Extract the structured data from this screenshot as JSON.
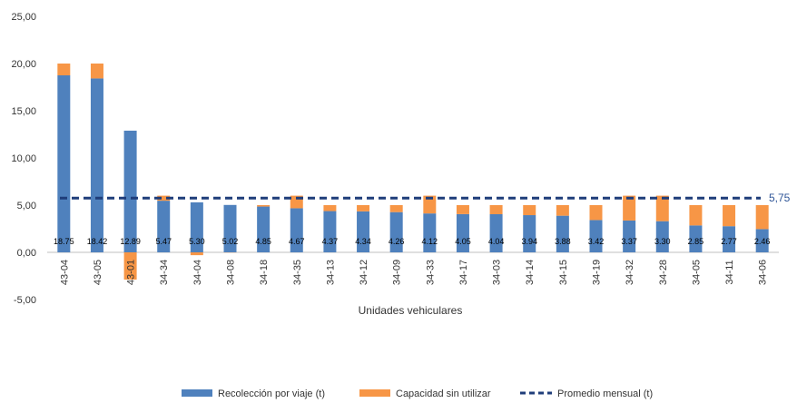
{
  "chart_data": {
    "type": "bar",
    "stacked": true,
    "xlabel": "Unidades vehiculares",
    "ylabel": "",
    "ylim": [
      -5,
      25
    ],
    "yticks": [
      "-5,00",
      "0,00",
      "5,00",
      "10,00",
      "15,00",
      "20,00",
      "25,00"
    ],
    "ytick_values": [
      -5,
      0,
      5,
      10,
      15,
      20,
      25
    ],
    "grid": false,
    "legend_position": "bottom",
    "categories": [
      "43-04",
      "43-05",
      "43-01",
      "34-34",
      "34-04",
      "34-08",
      "34-18",
      "34-35",
      "34-13",
      "34-12",
      "34-09",
      "34-33",
      "34-17",
      "34-03",
      "34-14",
      "34-15",
      "34-19",
      "34-32",
      "34-28",
      "34-05",
      "34-11",
      "34-06"
    ],
    "series": [
      {
        "name": "Recolección por viaje (t)",
        "color": "#4f81bd",
        "values": [
          18.75,
          18.42,
          12.89,
          5.47,
          5.3,
          5.02,
          4.85,
          4.67,
          4.37,
          4.34,
          4.26,
          4.12,
          4.05,
          4.04,
          3.94,
          3.88,
          3.42,
          3.37,
          3.3,
          2.85,
          2.77,
          2.46
        ],
        "labels": [
          "18.75",
          "18.42",
          "12.89",
          "5.47",
          "5.30",
          "5.02",
          "4.85",
          "4.67",
          "4.37",
          "4.34",
          "4.26",
          "4.12",
          "4.05",
          "4.04",
          "3.94",
          "3.88",
          "3.42",
          "3.37",
          "3.30",
          "2.85",
          "2.77",
          "2.46"
        ]
      },
      {
        "name": "Capacidad sin utilizar",
        "color": "#f79646",
        "values": [
          1.25,
          1.58,
          -2.89,
          0.53,
          -0.3,
          -0.02,
          0.15,
          1.33,
          0.63,
          0.66,
          0.74,
          1.88,
          0.95,
          0.96,
          1.06,
          1.12,
          1.58,
          2.63,
          2.7,
          2.15,
          2.23,
          2.54
        ]
      }
    ],
    "average": {
      "name": "Promedio mensual (t)",
      "value": 5.75,
      "label": "5,75",
      "color": "#1f3d7a"
    }
  }
}
